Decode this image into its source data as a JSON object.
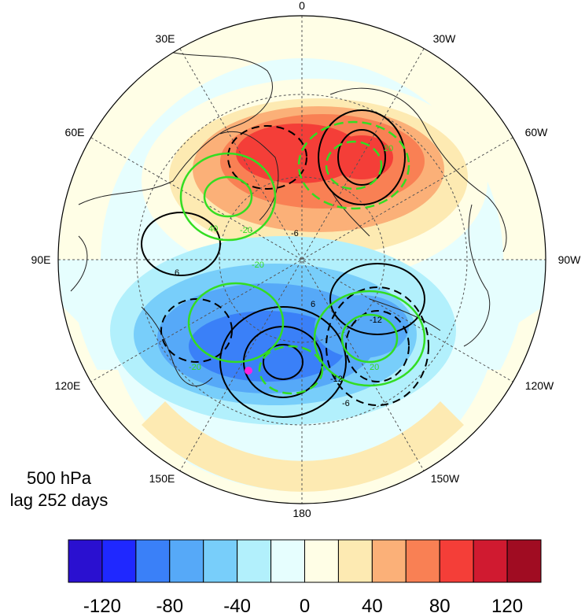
{
  "caption": {
    "level": "500 hPa",
    "lag": "lag 252 days"
  },
  "longitude_labels": {
    "top": "0",
    "top_right": "30W",
    "right_upper": "60W",
    "right": "90W",
    "right_lower": "120W",
    "bottom_right": "150W",
    "bottom": "180",
    "bottom_left": "150E",
    "left_lower": "120E",
    "left": "90E",
    "left_upper": "60E",
    "top_left": "30E"
  },
  "colorbar": {
    "colors": [
      "#2a10d0",
      "#1f28ff",
      "#3a80f8",
      "#56a9f8",
      "#78cefa",
      "#b2f0fc",
      "#e6fefe",
      "#fffee6",
      "#fdeab2",
      "#fbb078",
      "#f98054",
      "#f43e38",
      "#d01a30",
      "#a00c22"
    ],
    "tick_labels": [
      "-120",
      "-80",
      "-40",
      "0",
      "40",
      "80",
      "120"
    ]
  },
  "contour_labels": {
    "black": [
      "6",
      "-6",
      "6",
      "-12",
      "-6",
      "-12"
    ],
    "green": [
      "-20",
      "40",
      "-20",
      "20",
      "-20",
      "20"
    ]
  },
  "marker": {
    "color": "#ff22dd"
  }
}
